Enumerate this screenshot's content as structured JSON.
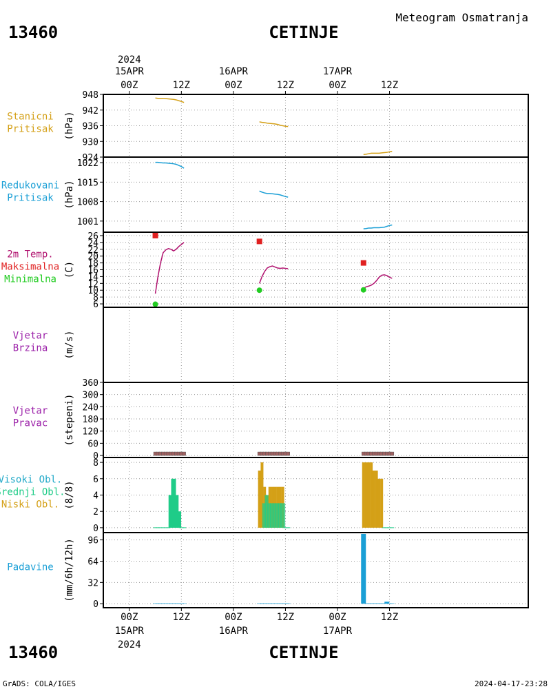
{
  "header": {
    "station_id": "13460",
    "station_name": "CETINJE",
    "title": "Meteogram Osmatranja"
  },
  "footer": {
    "credit": "GrADS: COLA/IGES",
    "timestamp": "2024-04-17-23:28"
  },
  "time_axis": {
    "year": "2024",
    "days": [
      {
        "date": "15APR",
        "label_00z": "00Z",
        "label_12z": "12Z"
      },
      {
        "date": "16APR",
        "label_00z": "00Z",
        "label_12z": "12Z"
      },
      {
        "date": "17APR",
        "label_00z": "00Z",
        "label_12z": "12Z"
      }
    ],
    "range_hours": [
      -6,
      92
    ]
  },
  "colors": {
    "pressure_station": "#d4a017",
    "pressure_reduced": "#1a9fd6",
    "temperature": "#b0106e",
    "tmax": "#e02020",
    "tmin": "#22cc22",
    "wind": "#9b1fa8",
    "high_cloud": "#1fa8c8",
    "mid_cloud": "#1fcc88",
    "low_cloud": "#d4a017",
    "precip": "#1a9fd6",
    "dir_bar": "#a06060"
  },
  "chart_data": [
    {
      "type": "line",
      "panel_label": [
        "Stanicni",
        "Pritisak"
      ],
      "ylabel": "(hPa)",
      "ylim": [
        924,
        948
      ],
      "yticks": [
        924,
        930,
        936,
        942,
        948
      ],
      "series": [
        {
          "x": [
            8,
            9,
            10,
            11,
            12,
            13,
            14,
            15,
            16,
            17,
            18,
            19
          ],
          "values": [
            946.6,
            946.5,
            946.5,
            946.5,
            946.4,
            946.3,
            946.2,
            946.1,
            945.9,
            945.6,
            945.3,
            944.9
          ]
        },
        {
          "x": [
            8,
            9,
            10,
            11,
            12,
            13,
            14,
            15,
            16,
            17,
            18,
            19
          ],
          "values": [
            937.5,
            937.3,
            937.2,
            937.0,
            936.9,
            936.8,
            936.7,
            936.5,
            936.2,
            936.0,
            935.8,
            935.7
          ]
        },
        {
          "x": [
            8,
            9,
            10,
            11,
            12,
            13,
            14,
            15,
            16,
            17,
            18,
            19
          ],
          "values": [
            925.0,
            925.1,
            925.3,
            925.5,
            925.5,
            925.5,
            925.5,
            925.6,
            925.7,
            925.8,
            926.0,
            926.2
          ]
        }
      ]
    },
    {
      "type": "line",
      "panel_label": [
        "Redukovani",
        "Pritisak"
      ],
      "ylabel": "(hPa)",
      "ylim": [
        997,
        1024
      ],
      "yticks": [
        1001,
        1008,
        1015,
        1022
      ],
      "series": [
        {
          "x": [
            8,
            9,
            10,
            11,
            12,
            13,
            14,
            15,
            16,
            17,
            18,
            19
          ],
          "values": [
            1022.1,
            1022.1,
            1022.0,
            1021.9,
            1021.9,
            1021.8,
            1021.7,
            1021.6,
            1021.4,
            1021.0,
            1020.6,
            1020.0
          ]
        },
        {
          "x": [
            8,
            9,
            10,
            11,
            12,
            13,
            14,
            15,
            16,
            17,
            18,
            19
          ],
          "values": [
            1011.8,
            1011.4,
            1011.1,
            1010.9,
            1010.9,
            1010.8,
            1010.7,
            1010.6,
            1010.4,
            1010.1,
            1009.8,
            1009.6
          ]
        },
        {
          "x": [
            8,
            9,
            10,
            11,
            12,
            13,
            14,
            15,
            16,
            17,
            18,
            19
          ],
          "values": [
            998.2,
            998.3,
            998.5,
            998.5,
            998.6,
            998.6,
            998.6,
            998.7,
            998.8,
            999.1,
            999.4,
            999.6
          ]
        }
      ]
    },
    {
      "type": "line",
      "panel_label": [
        "2m Temp.",
        "Maksimalna",
        "Minimalna"
      ],
      "ylabel": "(C)",
      "ylim": [
        5,
        27
      ],
      "yticks": [
        6,
        8,
        10,
        12,
        14,
        16,
        18,
        20,
        22,
        24,
        26
      ],
      "series": [
        {
          "name": "2m Temp.",
          "x": [
            8,
            9,
            10,
            11,
            12,
            13,
            14,
            15,
            16,
            17,
            18,
            19
          ],
          "values": [
            9.0,
            14.0,
            18.0,
            21.0,
            21.8,
            22.2,
            22.0,
            21.5,
            22.0,
            22.8,
            23.4,
            24.0
          ]
        },
        {
          "name": "2m Temp.",
          "x": [
            8,
            9,
            10,
            11,
            12,
            13,
            14,
            15,
            16,
            17,
            18,
            19
          ],
          "values": [
            12.0,
            14.0,
            15.5,
            16.5,
            16.9,
            17.1,
            16.8,
            16.5,
            16.4,
            16.5,
            16.4,
            16.3
          ]
        },
        {
          "name": "2m Temp.",
          "x": [
            8,
            9,
            10,
            11,
            12,
            13,
            14,
            15,
            16,
            17,
            18,
            19
          ],
          "values": [
            10.5,
            11.0,
            11.2,
            11.5,
            12.0,
            12.8,
            13.8,
            14.4,
            14.5,
            14.3,
            13.8,
            13.5
          ]
        }
      ],
      "tmax": {
        "name": "Maksimalna",
        "x": [
          8,
          8,
          8
        ],
        "values": [
          26.0,
          24.3,
          18.0
        ]
      },
      "tmin": {
        "name": "Minimalna",
        "x": [
          8,
          8,
          8
        ],
        "values": [
          5.9,
          10.0,
          10.1
        ]
      }
    },
    {
      "type": "line",
      "panel_label": [
        "Vjetar",
        "Brzina"
      ],
      "ylabel": "(m/s)",
      "series": []
    },
    {
      "type": "bar",
      "panel_label": [
        "Vjetar",
        "Pravac"
      ],
      "ylabel": "(stepeni)",
      "ylim": [
        -10,
        360
      ],
      "yticks": [
        0,
        60,
        120,
        180,
        240,
        300,
        360
      ],
      "bar_groups": [
        {
          "x": [
            8,
            9,
            10,
            11,
            12,
            13,
            14,
            15,
            16,
            17,
            18,
            19
          ],
          "values": [
            0,
            0,
            0,
            0,
            0,
            0,
            0,
            0,
            0,
            0,
            0,
            0
          ]
        },
        {
          "x": [
            8,
            9,
            10,
            11,
            12,
            13,
            14,
            15,
            16,
            17,
            18,
            19
          ],
          "values": [
            0,
            0,
            0,
            0,
            0,
            0,
            0,
            0,
            0,
            0,
            0,
            0
          ]
        },
        {
          "x": [
            8,
            9,
            10,
            11,
            12,
            13,
            14,
            15,
            16,
            17,
            18,
            19
          ],
          "values": [
            0,
            0,
            0,
            0,
            0,
            0,
            0,
            0,
            0,
            0,
            0,
            0
          ]
        }
      ]
    },
    {
      "type": "bar",
      "panel_label": [
        "Visoki Obl.",
        "Srednji Obl.",
        "Niski Obl."
      ],
      "ylabel": "(8/8)",
      "ylim": [
        -0.6,
        8.6
      ],
      "yticks": [
        0,
        2,
        4,
        6,
        8
      ],
      "bar_groups": [
        {
          "x": [
            8,
            9,
            10,
            11,
            12,
            13,
            14,
            15,
            16,
            17,
            18,
            19
          ],
          "low": [
            0,
            0,
            0,
            0,
            0,
            0,
            0,
            0,
            0,
            0,
            0,
            0
          ],
          "mid": [
            0,
            0,
            0,
            0,
            0,
            0,
            4,
            6,
            4,
            2,
            0,
            0
          ]
        },
        {
          "x": [
            8,
            9,
            10,
            11,
            12,
            13,
            14,
            15,
            16,
            17,
            18,
            19
          ],
          "low": [
            7,
            8,
            5,
            4,
            5,
            5,
            5,
            5,
            5,
            5,
            0,
            0
          ],
          "mid": [
            0,
            0,
            3,
            4,
            3,
            3,
            3,
            3,
            3,
            3,
            0,
            0
          ]
        },
        {
          "x": [
            8,
            9,
            10,
            11,
            12,
            13,
            14,
            15,
            16,
            17,
            18,
            19
          ],
          "low": [
            8,
            8,
            8,
            8,
            7,
            7,
            6,
            6,
            0,
            0,
            0,
            0
          ],
          "mid": [
            0,
            0,
            0,
            0,
            0,
            0,
            0,
            0,
            0,
            0,
            0,
            0
          ]
        }
      ]
    },
    {
      "type": "bar",
      "panel_label": [
        "Padavine"
      ],
      "ylabel": "(mm/6h/12h)",
      "ylim": [
        -6,
        107
      ],
      "yticks": [
        0,
        32,
        64,
        96
      ],
      "bar_groups": [
        {
          "x": [
            8,
            9,
            10,
            11,
            12,
            13,
            14,
            15,
            16,
            17,
            18,
            19
          ],
          "values": [
            0.6,
            0.6,
            0.6,
            0.6,
            0.6,
            0.6,
            0.6,
            0.6,
            0.6,
            0.6,
            0.6,
            0.6
          ]
        },
        {
          "x": [
            8,
            9,
            10,
            11,
            12,
            13,
            14,
            15,
            16,
            17,
            18,
            19
          ],
          "values": [
            0.6,
            0.6,
            0.6,
            0.6,
            0.6,
            0.6,
            0.6,
            0.6,
            0.6,
            0.6,
            0.6,
            0.6
          ]
        },
        {
          "x": [
            8,
            9,
            10,
            11,
            12,
            13,
            14,
            15,
            16,
            17,
            18,
            19
          ],
          "values": [
            105,
            0.6,
            0.6,
            0.6,
            0.6,
            0.6,
            0.6,
            0.6,
            0.6,
            3,
            0.6,
            0.6
          ]
        }
      ]
    }
  ]
}
